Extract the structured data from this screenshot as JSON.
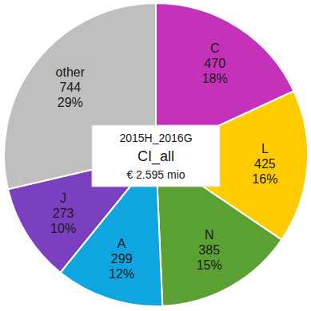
{
  "chart_data": {
    "type": "pie",
    "title": "2015H_2016G",
    "subtitle": "CI_all",
    "annotations": [
      "€ 2.595 mio"
    ],
    "categories": [
      "C",
      "L",
      "N",
      "A",
      "J",
      "other"
    ],
    "values": [
      470,
      425,
      385,
      299,
      273,
      744
    ],
    "percent_labels": [
      "18%",
      "16%",
      "15%",
      "12%",
      "10%",
      "29%"
    ],
    "colors": [
      "#c332b8",
      "#ffcc00",
      "#5aa032",
      "#0ea5e0",
      "#7b40c0",
      "#bfbfbf"
    ],
    "data_labels": true
  }
}
